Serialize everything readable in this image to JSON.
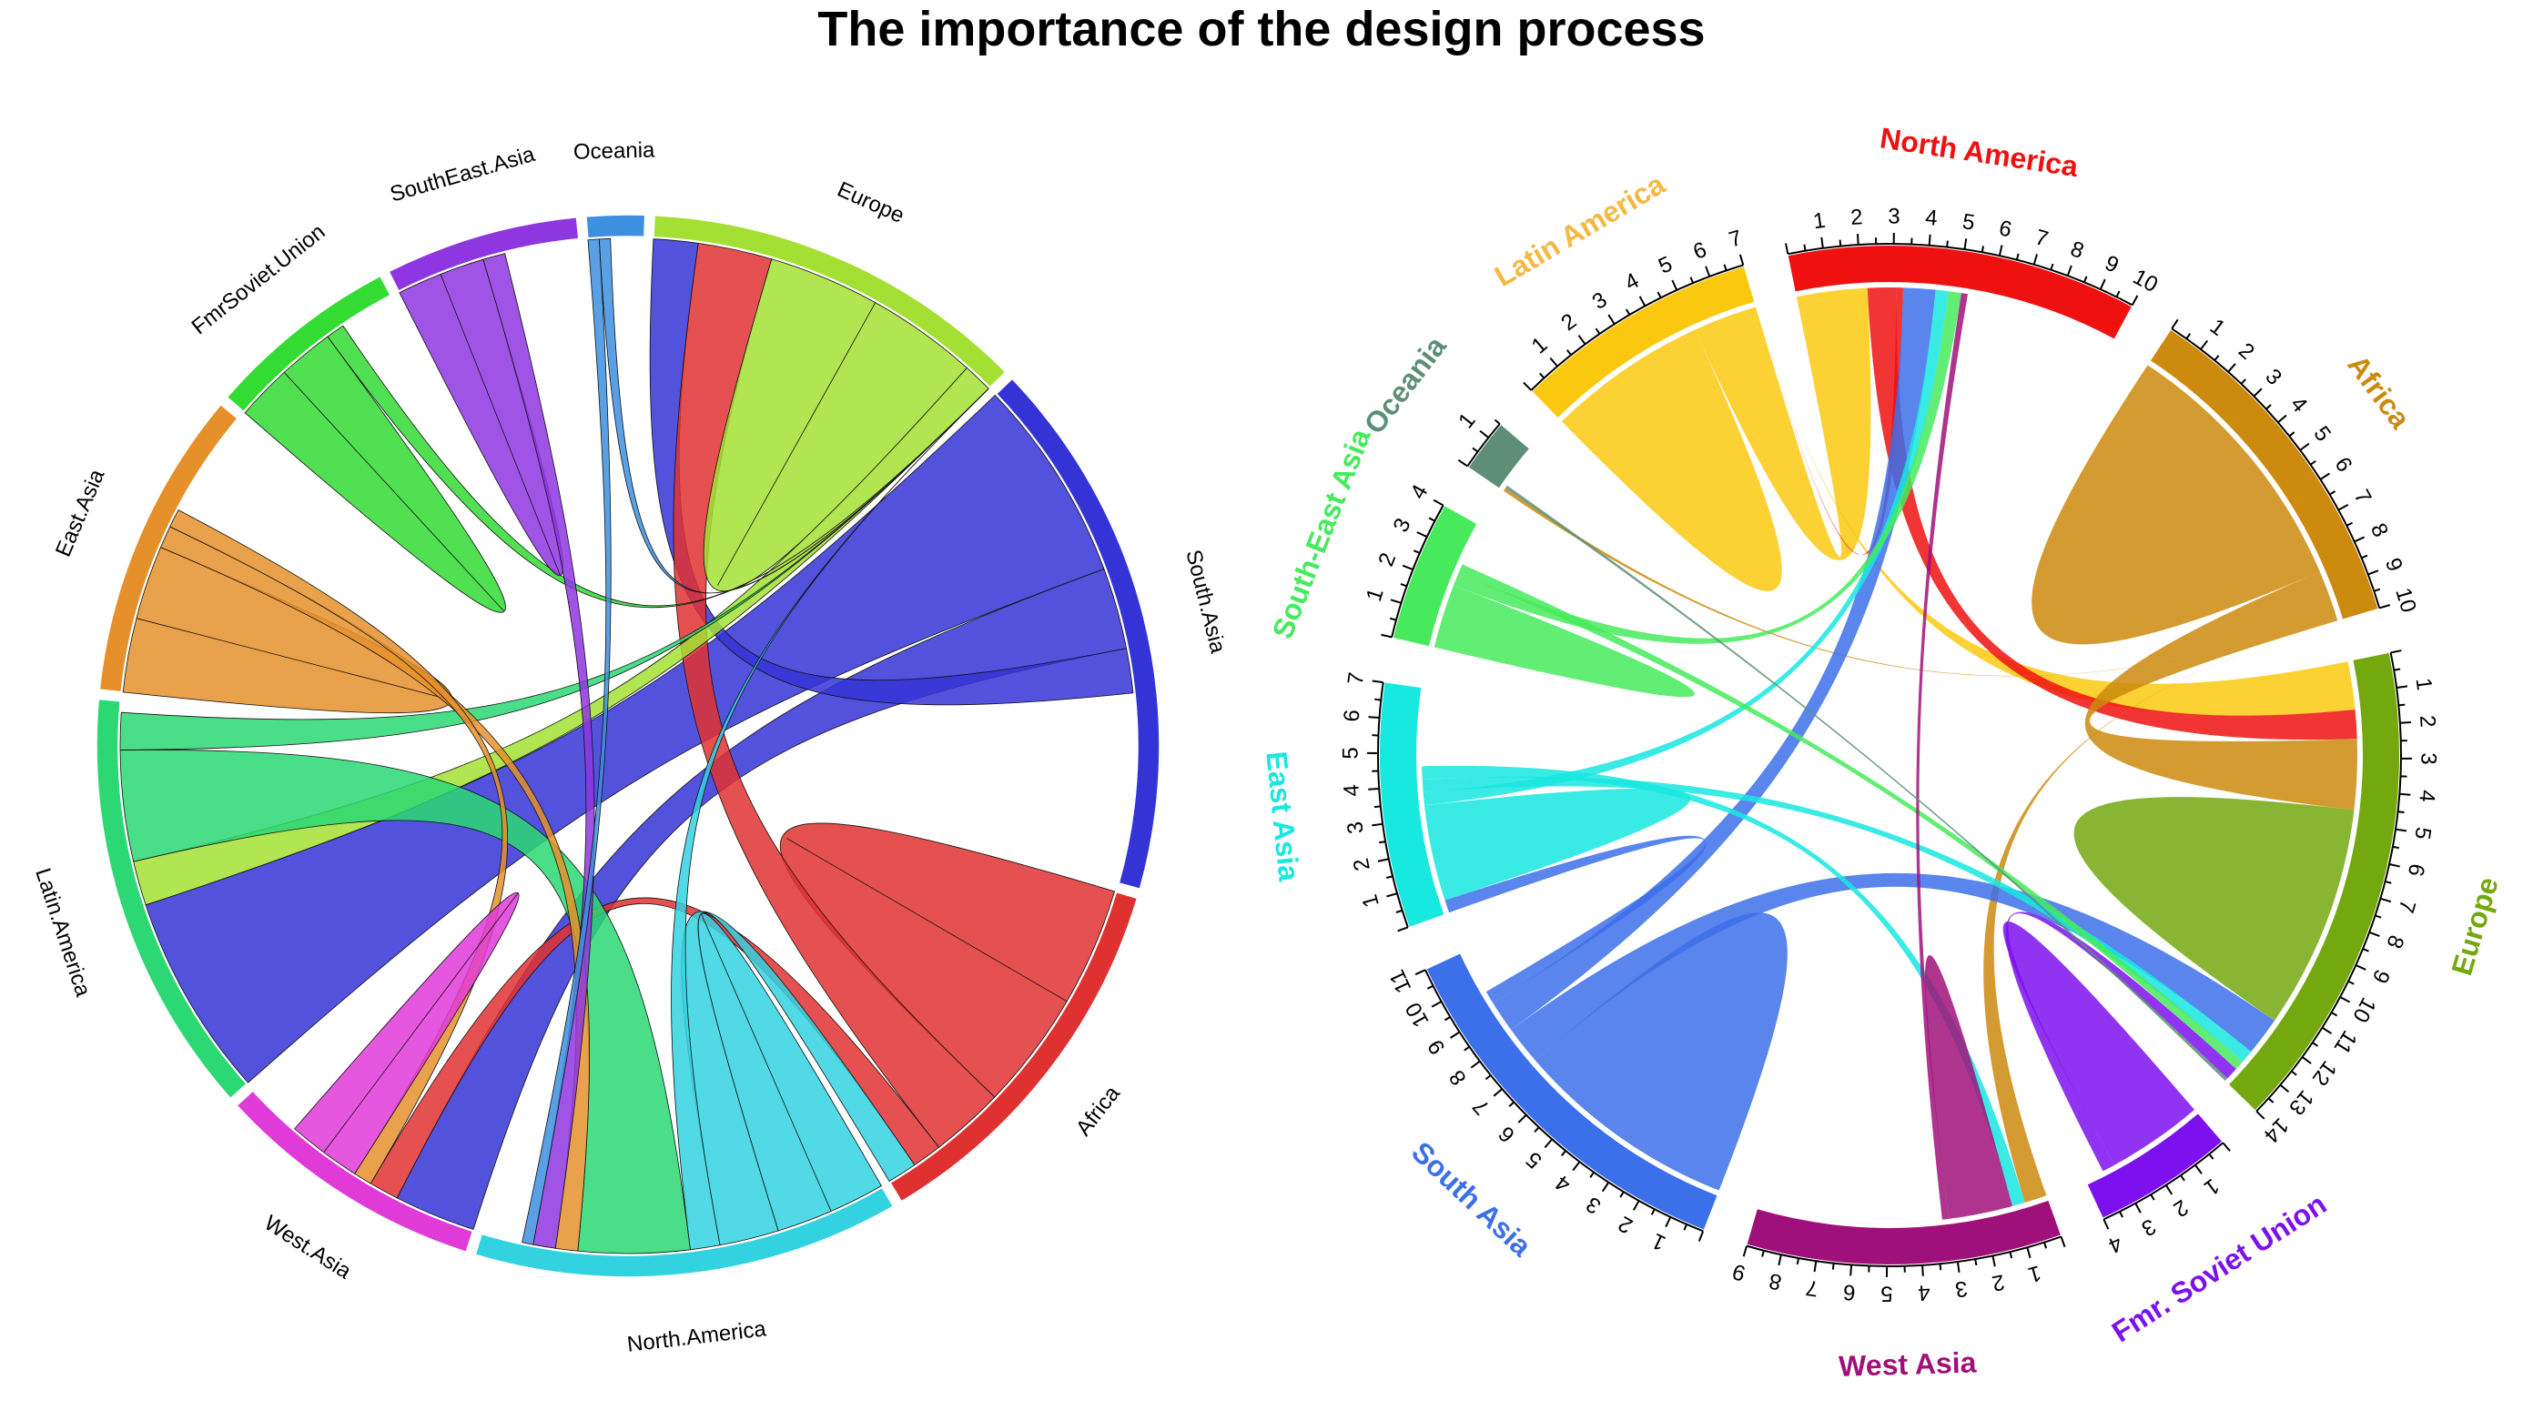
{
  "title": "The importance of the design process",
  "chart_data": [
    {
      "type": "chord",
      "style": "default circlize",
      "sectors": [
        {
          "name": "Europe",
          "label": "Europe",
          "color": "#a3e033",
          "total": 10
        },
        {
          "name": "South.Asia",
          "label": "South.Asia",
          "color": "#3434d6",
          "total": 14
        },
        {
          "name": "Africa",
          "label": "Africa",
          "color": "#e03131",
          "total": 10
        },
        {
          "name": "North.America",
          "label": "North.America",
          "color": "#33d2e0",
          "total": 11
        },
        {
          "name": "West.Asia",
          "label": "West.Asia",
          "color": "#e03ad8",
          "total": 7
        },
        {
          "name": "Latin.America",
          "label": "Latin.America",
          "color": "#2cd873",
          "total": 11
        },
        {
          "name": "East.Asia",
          "label": "East.Asia",
          "color": "#e5902b",
          "total": 8
        },
        {
          "name": "FmrSoviet.Union",
          "label": "FmrSoviet.Union",
          "color": "#33db33",
          "total": 5
        },
        {
          "name": "SouthEast.Asia",
          "label": "SouthEast.Asia",
          "color": "#8e36e0",
          "total": 5
        },
        {
          "name": "Oceania",
          "label": "Oceania",
          "color": "#3d8fe0",
          "total": 1.5
        }
      ],
      "flows": [
        {
          "from": "South.Asia",
          "to": "Latin.America",
          "value": 5.5
        },
        {
          "from": "South.Asia",
          "to": "West.Asia",
          "value": 2.2
        },
        {
          "from": "South.Asia",
          "to": "Europe",
          "value": 1.2
        },
        {
          "from": "Africa",
          "to": "Africa",
          "value": 3.2
        },
        {
          "from": "Africa",
          "to": "Europe",
          "value": 2
        },
        {
          "from": "Africa",
          "to": "West.Asia",
          "value": 0.8
        },
        {
          "from": "Europe",
          "to": "Europe",
          "value": 3
        },
        {
          "from": "Europe",
          "to": "Latin.America",
          "value": 1.2
        },
        {
          "from": "North.America",
          "to": "North.America",
          "value": 1.5
        },
        {
          "from": "North.America",
          "to": "Africa",
          "value": 1.6
        },
        {
          "from": "North.America",
          "to": "Europe",
          "value": 0.8
        },
        {
          "from": "Latin.America",
          "to": "North.America",
          "value": 3
        },
        {
          "from": "Latin.America",
          "to": "Europe",
          "value": 1
        },
        {
          "from": "East.Asia",
          "to": "East.Asia",
          "value": 2
        },
        {
          "from": "East.Asia",
          "to": "North.America",
          "value": 0.6
        },
        {
          "from": "East.Asia",
          "to": "West.Asia",
          "value": 0.5
        },
        {
          "from": "FmrSoviet.Union",
          "to": "FmrSoviet.Union",
          "value": 1.5
        },
        {
          "from": "FmrSoviet.Union",
          "to": "Europe",
          "value": 0.5
        },
        {
          "from": "SouthEast.Asia",
          "to": "SouthEast.Asia",
          "value": 1.2
        },
        {
          "from": "SouthEast.Asia",
          "to": "North.America",
          "value": 0.6
        },
        {
          "from": "West.Asia",
          "to": "West.Asia",
          "value": 1
        },
        {
          "from": "Oceania",
          "to": "North.America",
          "value": 0.3
        },
        {
          "from": "Oceania",
          "to": "Europe",
          "value": 0.3
        }
      ]
    },
    {
      "type": "chord",
      "style": "customized",
      "sectors": [
        {
          "name": "North America",
          "label": "North America",
          "color": "#ef1010",
          "ticks": [
            "1",
            "2",
            "3",
            "4",
            "5",
            "6",
            "7",
            "8",
            "9",
            "10"
          ],
          "max": 10
        },
        {
          "name": "Africa",
          "label": "Africa",
          "color": "#cc8a0e",
          "ticks": [
            "1",
            "2",
            "3",
            "4",
            "5",
            "6",
            "7",
            "8",
            "9",
            "10"
          ],
          "max": 10
        },
        {
          "name": "Europe",
          "label": "Europe",
          "color": "#73a80f",
          "ticks": [
            "1",
            "2",
            "3",
            "4",
            "5",
            "6",
            "7",
            "8",
            "9",
            "10",
            "11",
            "12",
            "13",
            "14"
          ],
          "max": 14
        },
        {
          "name": "Fmr. Soviet Union",
          "label": "Fmr. Soviet Union",
          "color": "#7d10ef",
          "ticks": [
            "1",
            "2",
            "3",
            "4"
          ],
          "max": 4
        },
        {
          "name": "West Asia",
          "label": "West Asia",
          "color": "#a0107a",
          "ticks": [
            "1",
            "2",
            "3",
            "4",
            "5",
            "6",
            "7",
            "8",
            "9"
          ],
          "max": 9
        },
        {
          "name": "South Asia",
          "label": "South Asia",
          "color": "#3c70ea",
          "ticks": [
            "1",
            "2",
            "3",
            "4",
            "5",
            "6",
            "7",
            "8",
            "9",
            "10",
            "11"
          ],
          "max": 11
        },
        {
          "name": "East Asia",
          "label": "East Asia",
          "color": "#17e8e0",
          "ticks": [
            "1",
            "2",
            "3",
            "4",
            "5",
            "6",
            "7"
          ],
          "max": 7
        },
        {
          "name": "South-East Asia",
          "label": "South-East Asia",
          "color": "#46ea5c",
          "ticks": [
            "1",
            "2",
            "3",
            "4"
          ],
          "max": 4
        },
        {
          "name": "Oceania",
          "label": "Oceania",
          "color": "#5e8e78",
          "ticks": [
            "1"
          ],
          "max": 1.5
        },
        {
          "name": "Latin America",
          "label": "Latin America",
          "color": "#fac90f",
          "ticks": [
            "1",
            "2",
            "3",
            "4",
            "5",
            "6",
            "7"
          ],
          "max": 7
        }
      ],
      "label_colors": {
        "North America": "#ef1010",
        "Africa": "#cc8a0e",
        "Europe": "#73a80f",
        "Fmr. Soviet Union": "#7d10ef",
        "West Asia": "#a0107a",
        "South Asia": "#3c70ea",
        "East Asia": "#17e8e0",
        "South-East Asia": "#46ea5c",
        "Oceania": "#5e8e78",
        "Latin America": "#f4b844"
      },
      "flows": [
        {
          "from": "Latin America",
          "to": "Latin America",
          "value": 2.5
        },
        {
          "from": "Latin America",
          "to": "North America",
          "value": 2.2
        },
        {
          "from": "Latin America",
          "to": "Europe",
          "value": 1.5
        },
        {
          "from": "North America",
          "to": "Europe",
          "value": 0.9
        },
        {
          "from": "North America",
          "to": "Latin America",
          "value": 0.2
        },
        {
          "from": "Africa",
          "to": "Africa",
          "value": 4.2
        },
        {
          "from": "Africa",
          "to": "Europe",
          "value": 2.2
        },
        {
          "from": "Africa",
          "to": "West Asia",
          "value": 0.7
        },
        {
          "from": "Africa",
          "to": "Oceania",
          "value": 0.1
        },
        {
          "from": "Europe",
          "to": "Europe",
          "value": 3.5
        },
        {
          "from": "South Asia",
          "to": "South Asia",
          "value": 3.5
        },
        {
          "from": "South Asia",
          "to": "Europe",
          "value": 1.2
        },
        {
          "from": "South Asia",
          "to": "North America",
          "value": 1
        },
        {
          "from": "South Asia",
          "to": "East Asia",
          "value": 0.4
        },
        {
          "from": "East Asia",
          "to": "East Asia",
          "value": 1.5
        },
        {
          "from": "East Asia",
          "to": "North America",
          "value": 0.4
        },
        {
          "from": "East Asia",
          "to": "Europe",
          "value": 0.4
        },
        {
          "from": "East Asia",
          "to": "West Asia",
          "value": 0.4
        },
        {
          "from": "South-East Asia",
          "to": "South-East Asia",
          "value": 1
        },
        {
          "from": "South-East Asia",
          "to": "North America",
          "value": 0.4
        },
        {
          "from": "South-East Asia",
          "to": "Europe",
          "value": 0.3
        },
        {
          "from": "Fmr. Soviet Union",
          "to": "Fmr. Soviet Union",
          "value": 1.5
        },
        {
          "from": "Fmr. Soviet Union",
          "to": "Europe",
          "value": 0.4
        },
        {
          "from": "West Asia",
          "to": "West Asia",
          "value": 1
        },
        {
          "from": "West Asia",
          "to": "North America",
          "value": 0.2
        },
        {
          "from": "Oceania",
          "to": "Europe",
          "value": 0.1
        }
      ]
    }
  ]
}
